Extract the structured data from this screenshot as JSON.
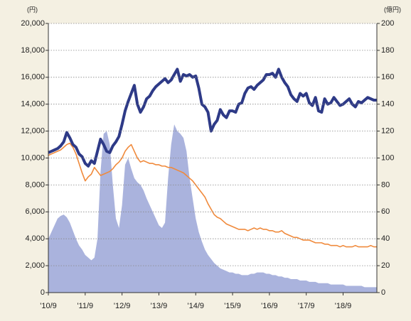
{
  "chart_data": {
    "type": "line",
    "y_unit": "(円)",
    "y2_unit": "(億円)",
    "categories": [
      "'10/9",
      null,
      null,
      null,
      null,
      null,
      null,
      null,
      null,
      null,
      null,
      null,
      "'11/9",
      null,
      null,
      null,
      null,
      null,
      null,
      null,
      null,
      null,
      null,
      null,
      "'12/9",
      null,
      null,
      null,
      null,
      null,
      null,
      null,
      null,
      null,
      null,
      null,
      "'13/9",
      null,
      null,
      null,
      null,
      null,
      null,
      null,
      null,
      null,
      null,
      null,
      "'14/9",
      null,
      null,
      null,
      null,
      null,
      null,
      null,
      null,
      null,
      null,
      null,
      "'15/9",
      null,
      null,
      null,
      null,
      null,
      null,
      null,
      null,
      null,
      null,
      null,
      "'16/9",
      null,
      null,
      null,
      null,
      null,
      null,
      null,
      null,
      null,
      null,
      null,
      "'17/9",
      null,
      null,
      null,
      null,
      null,
      null,
      null,
      null,
      null,
      null,
      null,
      "'18/9",
      null,
      null,
      null,
      null,
      null,
      null,
      null,
      null,
      null,
      null,
      null
    ],
    "series": [
      {
        "type": "area",
        "axis": "y2",
        "color": "#aab3dd",
        "values": [
          40,
          45,
          50,
          55,
          57,
          58,
          56,
          52,
          46,
          40,
          35,
          32,
          28,
          26,
          24,
          26,
          40,
          90,
          118,
          120,
          110,
          80,
          55,
          48,
          65,
          95,
          100,
          92,
          85,
          82,
          80,
          76,
          70,
          65,
          60,
          55,
          50,
          48,
          52,
          85,
          110,
          125,
          120,
          118,
          115,
          105,
          85,
          70,
          55,
          45,
          38,
          32,
          28,
          25,
          22,
          20,
          18,
          17,
          16,
          15,
          15,
          14,
          14,
          13,
          13,
          13,
          14,
          14,
          15,
          15,
          15,
          14,
          14,
          13,
          13,
          12,
          12,
          11,
          11,
          10,
          10,
          10,
          9,
          9,
          9,
          8,
          8,
          8,
          7,
          7,
          7,
          7,
          6,
          6,
          6,
          6,
          6,
          5,
          5,
          5,
          5,
          5,
          5,
          4,
          4,
          4,
          4,
          4
        ]
      },
      {
        "type": "line",
        "color": "#f08a3c",
        "values": [
          10200,
          10300,
          10400,
          10500,
          10600,
          10800,
          11000,
          11100,
          10800,
          10300,
          9600,
          8900,
          8300,
          8600,
          8800,
          9300,
          9000,
          8700,
          8800,
          8900,
          9000,
          9200,
          9500,
          9700,
          10000,
          10500,
          10800,
          11000,
          10500,
          10000,
          9700,
          9800,
          9700,
          9600,
          9600,
          9500,
          9500,
          9400,
          9400,
          9300,
          9300,
          9200,
          9100,
          9000,
          8900,
          8700,
          8500,
          8300,
          8000,
          7700,
          7400,
          7100,
          6600,
          6200,
          5800,
          5600,
          5500,
          5300,
          5100,
          5000,
          4900,
          4800,
          4700,
          4700,
          4700,
          4600,
          4700,
          4800,
          4700,
          4800,
          4700,
          4700,
          4600,
          4600,
          4500,
          4500,
          4600,
          4400,
          4300,
          4200,
          4100,
          4100,
          4000,
          3900,
          3900,
          3900,
          3800,
          3700,
          3700,
          3700,
          3600,
          3600,
          3500,
          3500,
          3500,
          3400,
          3500,
          3400,
          3400,
          3400,
          3500,
          3400,
          3400,
          3400,
          3400,
          3500,
          3400,
          3400
        ]
      },
      {
        "type": "line",
        "color": "#2e3a87",
        "values": [
          10400,
          10500,
          10600,
          10700,
          10900,
          11200,
          11900,
          11500,
          11000,
          10800,
          10300,
          10100,
          9600,
          9400,
          9800,
          9600,
          10500,
          11400,
          11000,
          10500,
          10400,
          10900,
          11200,
          11600,
          12500,
          13500,
          14200,
          14800,
          15400,
          14000,
          13400,
          13800,
          14400,
          14600,
          15000,
          15300,
          15500,
          15700,
          15900,
          15600,
          15800,
          16200,
          16600,
          15700,
          16200,
          16100,
          16200,
          16000,
          16100,
          15200,
          14000,
          13800,
          13400,
          12000,
          12500,
          12800,
          13600,
          13200,
          13000,
          13500,
          13500,
          13400,
          14000,
          14100,
          14800,
          15200,
          15300,
          15100,
          15400,
          15600,
          15800,
          16200,
          16200,
          16300,
          16000,
          16600,
          16000,
          15600,
          15300,
          14700,
          14400,
          14200,
          14800,
          14600,
          14800,
          14100,
          13900,
          14500,
          13500,
          13400,
          14400,
          14000,
          14100,
          14500,
          14200,
          13900,
          14000,
          14200,
          14400,
          14000,
          13800,
          14200,
          14100,
          14300,
          14500,
          14400,
          14300,
          14300
        ]
      }
    ],
    "ylim": [
      0,
      20000
    ],
    "yticks": [
      0,
      {
        "value": 2000,
        "label": "2,000"
      },
      {
        "value": 4000,
        "label": "4,000"
      },
      {
        "value": 6000,
        "label": "6,000"
      },
      {
        "value": 8000,
        "label": "8,000"
      },
      {
        "value": 10000,
        "label": "10,000"
      },
      {
        "value": 12000,
        "label": "12,000"
      },
      {
        "value": 14000,
        "label": "14,000"
      },
      {
        "value": 16000,
        "label": "16,000"
      },
      {
        "value": 18000,
        "label": "18,000"
      },
      {
        "value": 20000,
        "label": "20,000"
      }
    ],
    "y2lim": [
      0,
      200
    ],
    "y2ticks": [
      0,
      20,
      40,
      60,
      80,
      100,
      120,
      140,
      160,
      180,
      200
    ],
    "grid": true
  }
}
